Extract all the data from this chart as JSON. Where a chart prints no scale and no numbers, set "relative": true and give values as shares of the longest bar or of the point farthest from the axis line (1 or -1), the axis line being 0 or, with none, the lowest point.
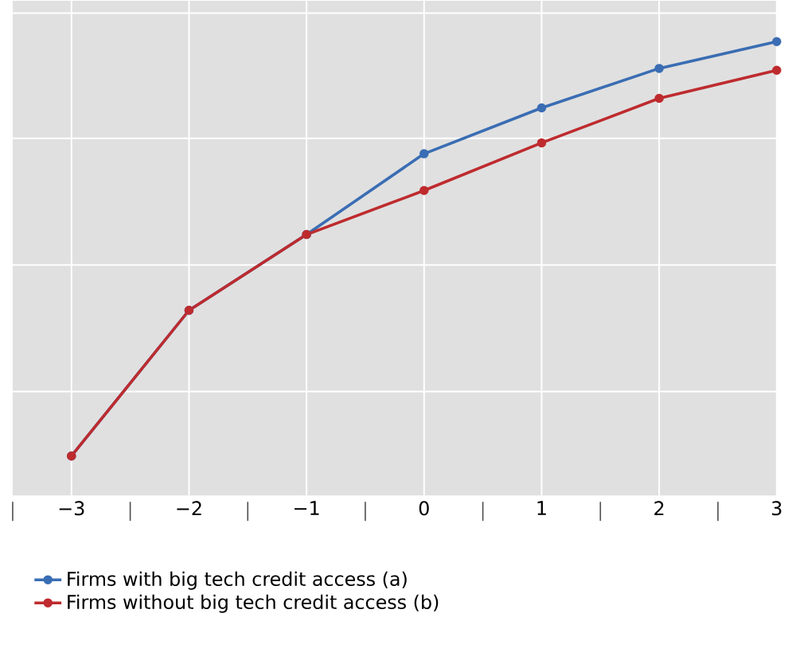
{
  "chart_data": {
    "type": "line",
    "relative": true,
    "x": [
      -3,
      -2,
      -1,
      0,
      1,
      2,
      3
    ],
    "xlim": [
      -3.5,
      3
    ],
    "xticks": [
      {
        "value": -3.5,
        "label": null
      },
      {
        "value": -3,
        "label": "−3"
      },
      {
        "value": -2.5,
        "label": null
      },
      {
        "value": -2,
        "label": "−2"
      },
      {
        "value": -1.5,
        "label": null
      },
      {
        "value": -1,
        "label": "−1"
      },
      {
        "value": -0.5,
        "label": null
      },
      {
        "value": 0,
        "label": "0"
      },
      {
        "value": 0.5,
        "label": null
      },
      {
        "value": 1,
        "label": "1"
      },
      {
        "value": 1.5,
        "label": null
      },
      {
        "value": 2,
        "label": "2"
      },
      {
        "value": 2.5,
        "label": null
      },
      {
        "value": 3,
        "label": "3"
      }
    ],
    "series": [
      {
        "name": "Firms with big tech credit access (a)",
        "color": "#3a6db3",
        "values": [
          0.087,
          0.408,
          0.575,
          0.753,
          0.854,
          0.941,
          1
        ]
      },
      {
        "name": "Firms without big tech credit access (b)",
        "color": "#be2b2e",
        "values": [
          0.087,
          0.408,
          0.575,
          0.672,
          0.777,
          0.875,
          0.937
        ]
      }
    ],
    "grid": true,
    "legend": "bottom",
    "marker": "circle",
    "line_style": "solid",
    "tick_labels": "x"
  }
}
